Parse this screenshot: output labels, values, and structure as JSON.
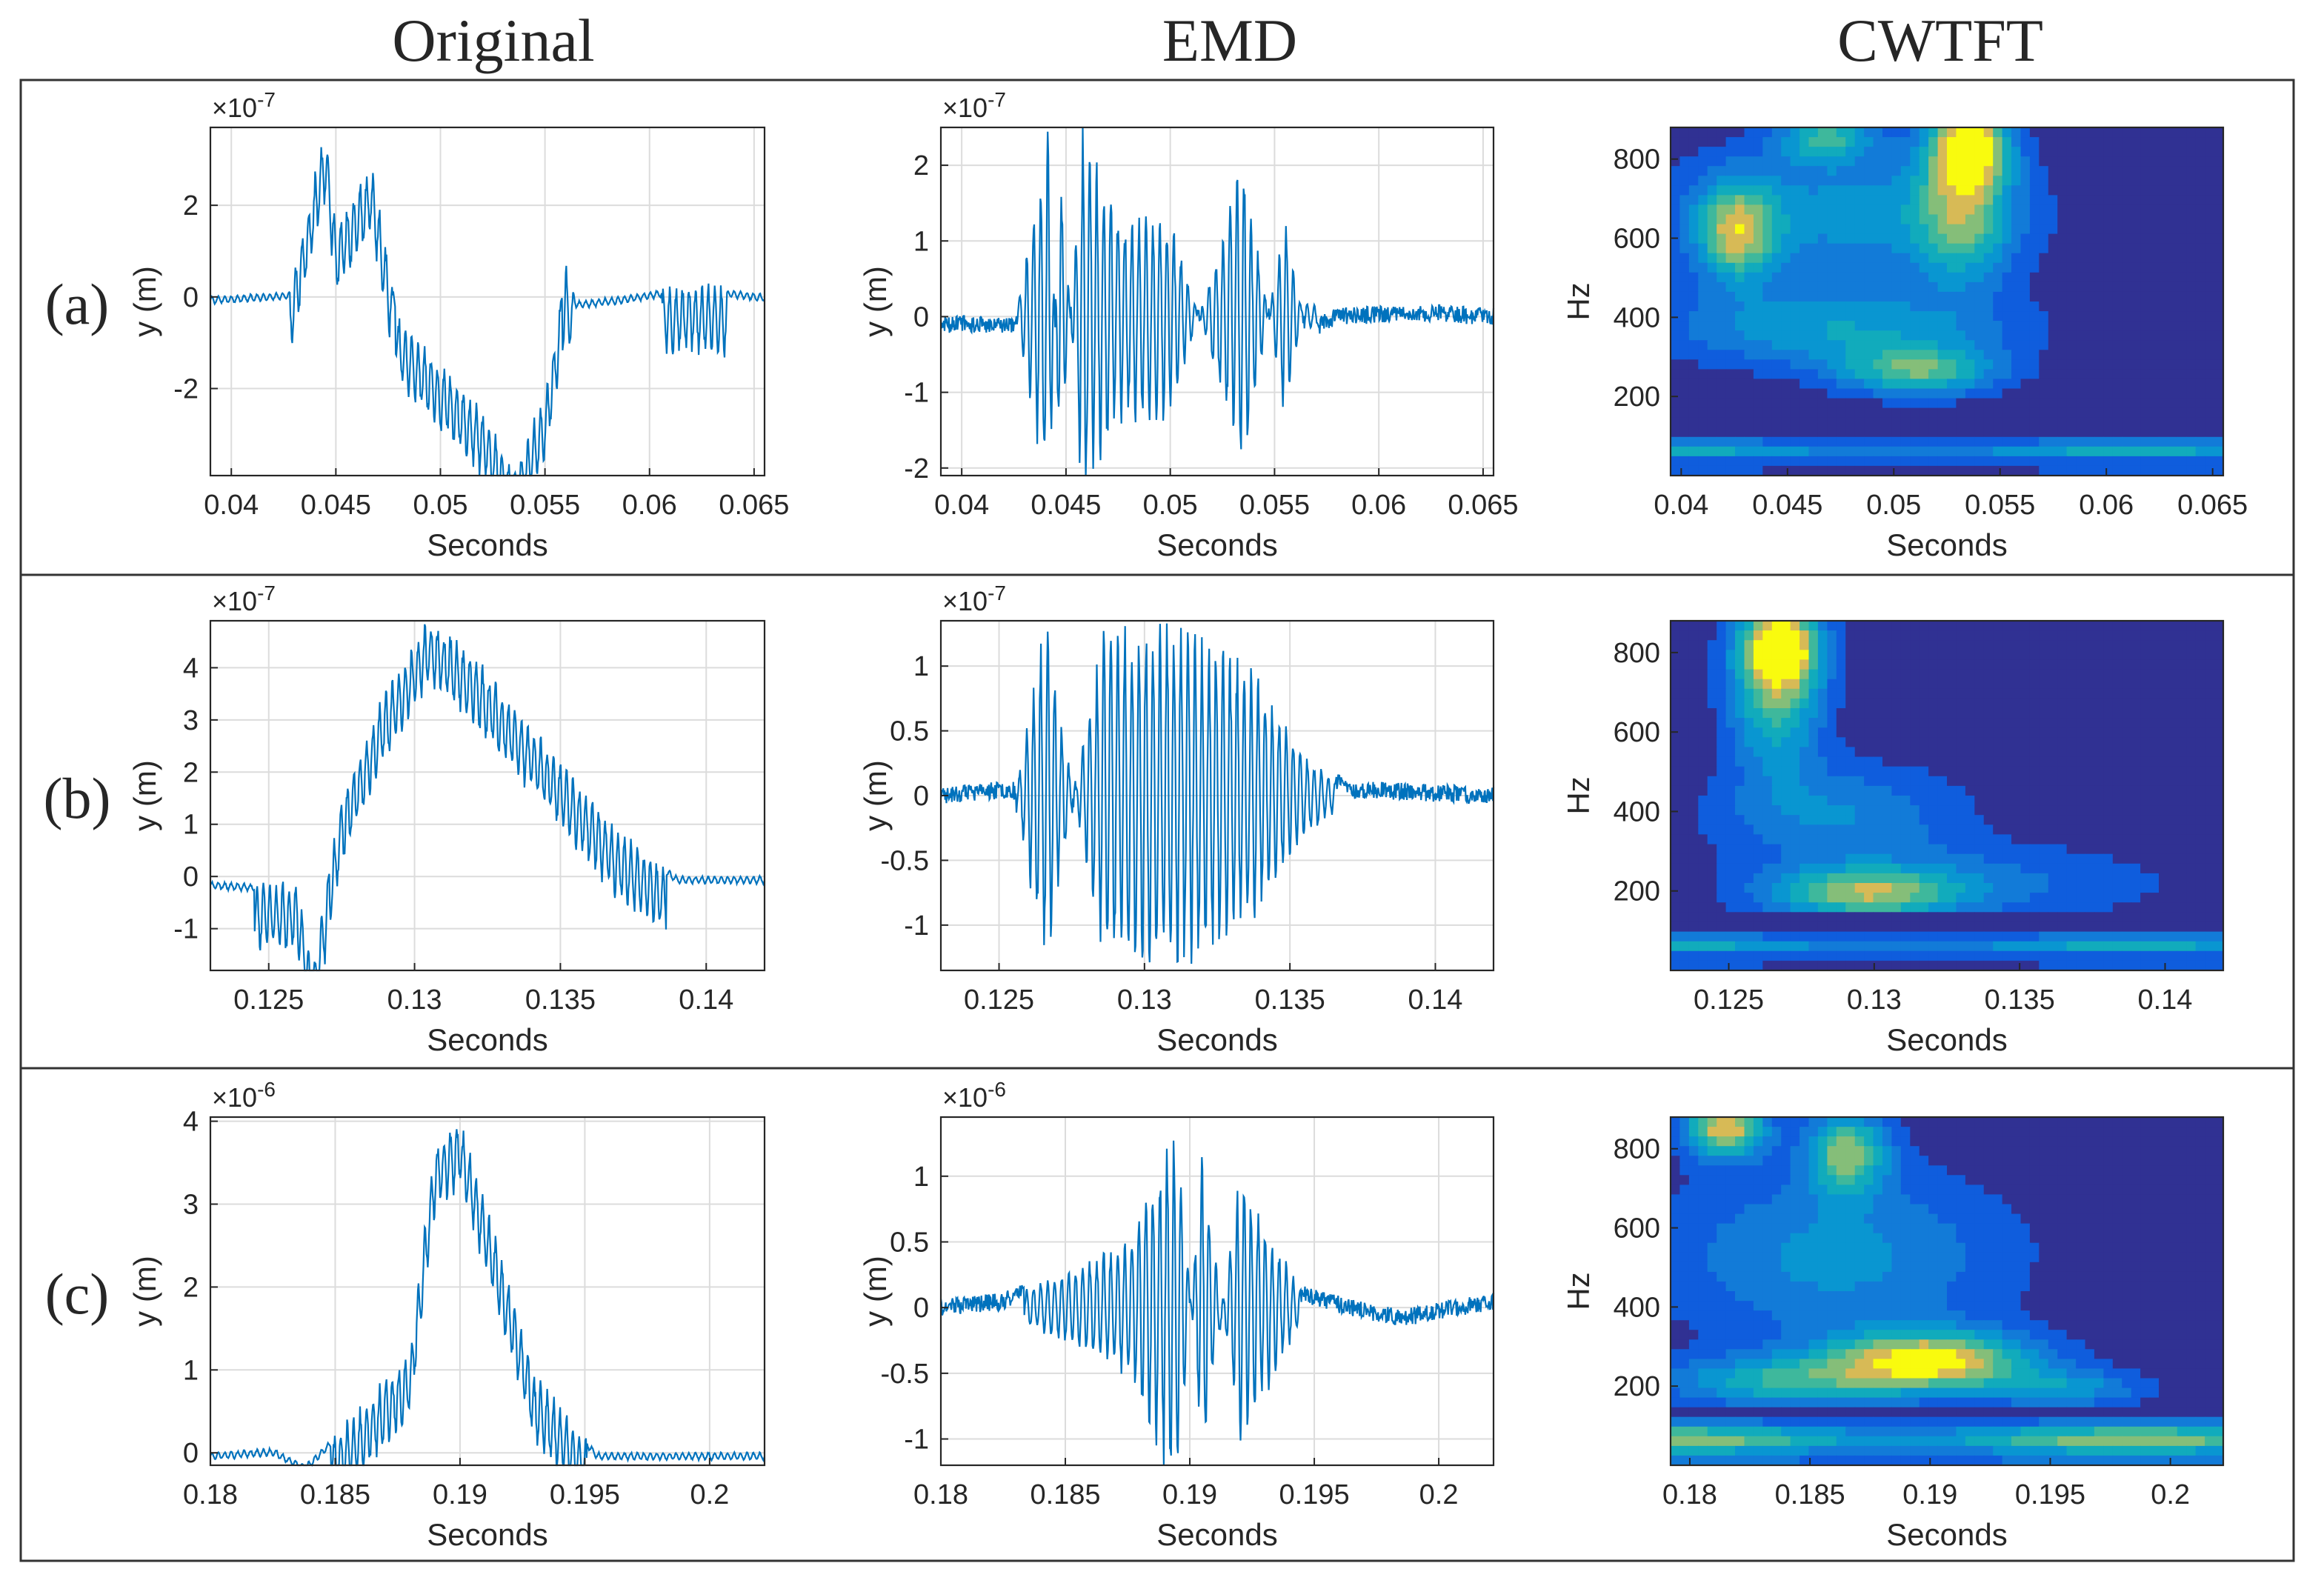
{
  "columns": [
    "Original",
    "EMD",
    "CWTFT"
  ],
  "rows": [
    {
      "label": "(a)",
      "original": {
        "type": "line",
        "xlabel": "Seconds",
        "ylabel": "y (m)",
        "exponent": "-7",
        "xticks": [
          "0.04",
          "0.045",
          "0.05",
          "0.055",
          "0.06",
          "0.065"
        ],
        "yticks": [
          "-2",
          "0",
          "2"
        ]
      },
      "emd": {
        "type": "line",
        "xlabel": "Seconds",
        "ylabel": "y (m)",
        "exponent": "-7",
        "xticks": [
          "0.04",
          "0.045",
          "0.05",
          "0.055",
          "0.06",
          "0.065"
        ],
        "yticks": [
          "-2",
          "-1",
          "0",
          "1",
          "2"
        ]
      },
      "cwtft": {
        "type": "heatmap",
        "xlabel": "Seconds",
        "ylabel": "Hz",
        "xticks": [
          "0.04",
          "0.045",
          "0.05",
          "0.055",
          "0.06",
          "0.065"
        ],
        "yticks": [
          "200",
          "400",
          "600",
          "800"
        ]
      }
    },
    {
      "label": "(b)",
      "original": {
        "type": "line",
        "xlabel": "Seconds",
        "ylabel": "y (m)",
        "exponent": "-7",
        "xticks": [
          "0.125",
          "0.13",
          "0.135",
          "0.14"
        ],
        "yticks": [
          "-1",
          "0",
          "1",
          "2",
          "3",
          "4"
        ]
      },
      "emd": {
        "type": "line",
        "xlabel": "Seconds",
        "ylabel": "y (m)",
        "exponent": "-7",
        "xticks": [
          "0.125",
          "0.13",
          "0.135",
          "0.14"
        ],
        "yticks": [
          "-1",
          "-0.5",
          "0",
          "0.5",
          "1"
        ]
      },
      "cwtft": {
        "type": "heatmap",
        "xlabel": "Seconds",
        "ylabel": "Hz",
        "xticks": [
          "0.125",
          "0.13",
          "0.135",
          "0.14"
        ],
        "yticks": [
          "200",
          "400",
          "600",
          "800"
        ]
      }
    },
    {
      "label": "(c)",
      "original": {
        "type": "line",
        "xlabel": "Seconds",
        "ylabel": "y (m)",
        "exponent": "-6",
        "xticks": [
          "0.18",
          "0.185",
          "0.19",
          "0.195",
          "0.2"
        ],
        "yticks": [
          "0",
          "1",
          "2",
          "3",
          "4"
        ]
      },
      "emd": {
        "type": "line",
        "xlabel": "Seconds",
        "ylabel": "y (m)",
        "exponent": "-6",
        "xticks": [
          "0.18",
          "0.185",
          "0.19",
          "0.195",
          "0.2"
        ],
        "yticks": [
          "-1",
          "-0.5",
          "0",
          "0.5",
          "1"
        ]
      },
      "cwtft": {
        "type": "heatmap",
        "xlabel": "Seconds",
        "ylabel": "Hz",
        "xticks": [
          "0.18",
          "0.185",
          "0.19",
          "0.195",
          "0.2"
        ],
        "yticks": [
          "200",
          "400",
          "600",
          "800"
        ]
      }
    }
  ],
  "chart_data": [
    {
      "type": "line",
      "panel": "(a) Original",
      "xlim": [
        0.039,
        0.0655
      ],
      "ylim": [
        -3.9,
        3.7
      ],
      "y_scale": "1e-7",
      "x": [
        0.039,
        0.0428,
        0.0432,
        0.0438,
        0.0445,
        0.045,
        0.0467,
        0.048,
        0.05,
        0.052,
        0.0535,
        0.055,
        0.0555,
        0.056,
        0.0565,
        0.0585,
        0.062,
        0.0655
      ],
      "y": [
        0.0,
        0.1,
        1.0,
        2.2,
        3.6,
        1.5,
        2.8,
        -0.5,
        -1.5,
        -2.5,
        -3.8,
        -2.2,
        -0.8,
        0.6,
        -0.1,
        0.0,
        0.25,
        0.05
      ]
    },
    {
      "type": "line",
      "panel": "(a) EMD",
      "xlim": [
        0.039,
        0.0655
      ],
      "ylim": [
        -2.1,
        2.5
      ],
      "y_scale": "1e-7",
      "x": [
        0.039,
        0.0425,
        0.0442,
        0.0447,
        0.0458,
        0.0475,
        0.05,
        0.0535,
        0.0555,
        0.0565,
        0.058,
        0.062,
        0.0655
      ],
      "y": [
        -0.1,
        -0.1,
        2.4,
        -2.1,
        2.4,
        1.3,
        1.3,
        -2.0,
        1.3,
        -0.2,
        0.0,
        0.05,
        0.0
      ]
    },
    {
      "type": "heatmap",
      "panel": "(a) CWTFT",
      "xlim": [
        0.0395,
        0.0655
      ],
      "ylim": [
        0,
        880
      ],
      "z_range": [
        0,
        1
      ]
    },
    {
      "type": "line",
      "panel": "(b) Original",
      "xlim": [
        0.123,
        0.142
      ],
      "ylim": [
        -1.8,
        4.9
      ],
      "y_scale": "1e-7",
      "x": [
        0.123,
        0.126,
        0.1265,
        0.1275,
        0.129,
        0.1305,
        0.132,
        0.1345,
        0.137,
        0.139,
        0.142
      ],
      "y": [
        -0.1,
        -0.2,
        -1.8,
        1.5,
        3.5,
        4.9,
        4.2,
        2.5,
        0.8,
        0.0,
        0.0
      ]
    },
    {
      "type": "line",
      "panel": "(b) EMD",
      "xlim": [
        0.123,
        0.142
      ],
      "ylim": [
        -1.35,
        1.35
      ],
      "y_scale": "1e-7",
      "x": [
        0.123,
        0.1255,
        0.1266,
        0.1285,
        0.131,
        0.1335,
        0.1355,
        0.137,
        0.142
      ],
      "y": [
        0.0,
        0.05,
        -1.3,
        1.2,
        1.3,
        1.0,
        0.3,
        0.05,
        0.0
      ]
    },
    {
      "type": "heatmap",
      "panel": "(b) CWTFT",
      "xlim": [
        0.123,
        0.142
      ],
      "ylim": [
        0,
        880
      ],
      "z_range": [
        0,
        1
      ]
    },
    {
      "type": "line",
      "panel": "(c) Original",
      "xlim": [
        0.18,
        0.2022
      ],
      "ylim": [
        -0.15,
        4.05
      ],
      "y_scale": "1e-6",
      "x": [
        0.18,
        0.1825,
        0.1838,
        0.186,
        0.188,
        0.189,
        0.19,
        0.1915,
        0.193,
        0.1955,
        0.2022
      ],
      "y": [
        0.0,
        0.05,
        -0.15,
        0.5,
        1.2,
        3.7,
        4.0,
        2.5,
        0.9,
        0.0,
        0.0
      ]
    },
    {
      "type": "line",
      "panel": "(c) EMD",
      "xlim": [
        0.18,
        0.2022
      ],
      "ylim": [
        -1.2,
        1.45
      ],
      "y_scale": "1e-6",
      "x": [
        0.18,
        0.1825,
        0.1855,
        0.1875,
        0.1895,
        0.1905,
        0.192,
        0.1945,
        0.1965,
        0.1985,
        0.2022
      ],
      "y": [
        0.0,
        0.05,
        0.3,
        0.5,
        1.4,
        -1.15,
        1.0,
        0.1,
        0.0,
        -0.08,
        0.05
      ]
    },
    {
      "type": "heatmap",
      "panel": "(c) CWTFT",
      "xlim": [
        0.1792,
        0.2022
      ],
      "ylim": [
        0,
        880
      ],
      "z_range": [
        0,
        1
      ]
    }
  ]
}
